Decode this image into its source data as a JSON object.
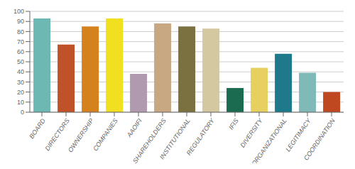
{
  "chart_data": {
    "type": "bar",
    "categories": [
      "BOARD",
      "DIRECTORS",
      "OWNERSHIP",
      "COMPANIES",
      "AAOIFI",
      "SHAREHOLDERS",
      "INSTITUTIONAL",
      "REGULATORY",
      "IFIS",
      "DIVERSITY",
      "ORGANIZATIONAL",
      "LEGITIMACY",
      "COORDINATION"
    ],
    "values": [
      93,
      67,
      85,
      93,
      38,
      88,
      85,
      83,
      24,
      44,
      58,
      39,
      20
    ],
    "colors": [
      "#6db8b2",
      "#c0522a",
      "#d4821e",
      "#f0e020",
      "#b09ab0",
      "#c8a882",
      "#7a7040",
      "#d4c8a0",
      "#1a6b50",
      "#e8d060",
      "#1e7a8a",
      "#80bab8",
      "#c04820"
    ],
    "ylim": [
      0,
      100
    ],
    "yticks": [
      0,
      10,
      20,
      30,
      40,
      50,
      60,
      70,
      80,
      90,
      100
    ],
    "grid": true
  }
}
